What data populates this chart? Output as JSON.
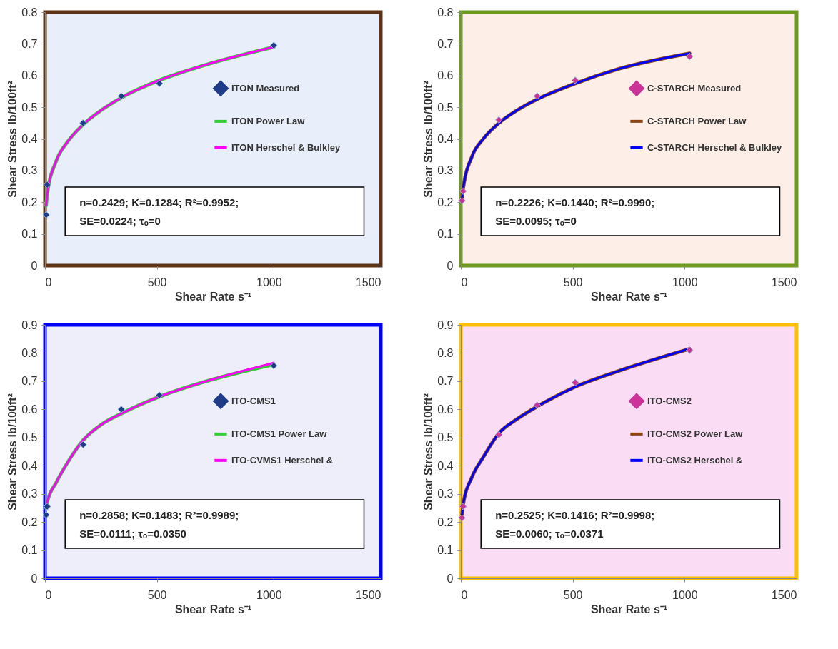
{
  "chart_data": [
    {
      "type": "line",
      "xlabel": "Shear Rate s⁻¹",
      "ylabel": "Shear Stress lb/100ft²",
      "xlim": [
        0,
        1500
      ],
      "xticks": [
        0,
        500,
        1000,
        1500
      ],
      "ylim": [
        0,
        0.8
      ],
      "yticks": [
        0,
        0.1,
        0.2,
        0.3,
        0.4,
        0.5,
        0.6,
        0.7,
        0.8
      ],
      "grid": false,
      "legend": "right",
      "line_style": "solid",
      "annotations": [
        "n=0.2429; K=0.1284; R²=0.9952;",
        "SE=0.0224; τₒ=0"
      ],
      "series": [
        {
          "name": "ITON Measured",
          "type": "scatter",
          "color": "#1f3c88",
          "x": [
            5,
            10,
            170,
            341,
            511,
            1022
          ],
          "values": [
            0.16,
            0.255,
            0.45,
            0.535,
            0.575,
            0.695
          ]
        },
        {
          "name": "ITON Power Law",
          "color": "#33cc33",
          "x": [
            5,
            10,
            50,
            100,
            170,
            250,
            341,
            511,
            700,
            1022
          ],
          "values": [
            0.19,
            0.225,
            0.33,
            0.39,
            0.445,
            0.49,
            0.53,
            0.585,
            0.63,
            0.69
          ]
        },
        {
          "name": "ITON Herschel & Bulkley",
          "color": "#ff00ff",
          "x": [
            5,
            10,
            50,
            100,
            170,
            250,
            341,
            511,
            700,
            1022
          ],
          "values": [
            0.19,
            0.225,
            0.33,
            0.39,
            0.445,
            0.49,
            0.53,
            0.585,
            0.63,
            0.69
          ]
        }
      ]
    },
    {
      "type": "line",
      "xlabel": "Shear Rate s⁻¹",
      "ylabel": "Shear Stress lb/100ft²",
      "xlim": [
        0,
        1500
      ],
      "xticks": [
        0,
        500,
        1000,
        1500
      ],
      "ylim": [
        0,
        0.8
      ],
      "yticks": [
        0,
        0.1,
        0.2,
        0.3,
        0.4,
        0.5,
        0.6,
        0.7,
        0.8
      ],
      "grid": false,
      "legend": "right",
      "line_style": "solid",
      "annotations": [
        "n=0.2226; K=0.1440; R²=0.9990;",
        "SE=0.0095; τₒ=0"
      ],
      "series": [
        {
          "name": "C-STARCH Measured",
          "type": "scatter",
          "color": "#cc3399",
          "x": [
            5,
            10,
            170,
            341,
            511,
            1022
          ],
          "values": [
            0.205,
            0.235,
            0.46,
            0.535,
            0.585,
            0.66
          ]
        },
        {
          "name": "C-STARCH Power Law",
          "color": "#8b4513",
          "x": [
            5,
            10,
            50,
            100,
            170,
            250,
            341,
            511,
            700,
            1022
          ],
          "values": [
            0.205,
            0.24,
            0.345,
            0.4,
            0.45,
            0.49,
            0.525,
            0.575,
            0.62,
            0.67
          ]
        },
        {
          "name": "C-STARCH Herschel & Bulkley",
          "color": "#0000ff",
          "x": [
            5,
            10,
            50,
            100,
            170,
            250,
            341,
            511,
            700,
            1022
          ],
          "values": [
            0.205,
            0.24,
            0.345,
            0.4,
            0.45,
            0.49,
            0.525,
            0.575,
            0.62,
            0.67
          ]
        }
      ]
    },
    {
      "type": "line",
      "xlabel": "Shear Rate s⁻¹",
      "ylabel": "Shear Stress lb/100ft²",
      "xlim": [
        0,
        1500
      ],
      "xticks": [
        0,
        500,
        1000,
        1500
      ],
      "ylim": [
        0,
        0.9
      ],
      "yticks": [
        0,
        0.1,
        0.2,
        0.3,
        0.4,
        0.5,
        0.6,
        0.7,
        0.8,
        0.9
      ],
      "grid": false,
      "legend": "right",
      "line_style": "solid",
      "annotations": [
        "n=0.2858; K=0.1483; R²=0.9989;",
        "SE=0.0111; τₒ=0.0350"
      ],
      "series": [
        {
          "name": "ITO-CMS1",
          "type": "scatter",
          "color": "#1f3c88",
          "x": [
            5,
            10,
            170,
            341,
            511,
            1022
          ],
          "values": [
            0.225,
            0.255,
            0.475,
            0.6,
            0.65,
            0.755
          ]
        },
        {
          "name": "ITO-CMS1 Power Law",
          "color": "#33cc33",
          "x": [
            5,
            10,
            50,
            100,
            170,
            250,
            341,
            511,
            700,
            1022
          ],
          "values": [
            0.25,
            0.27,
            0.34,
            0.41,
            0.49,
            0.545,
            0.585,
            0.645,
            0.695,
            0.76
          ]
        },
        {
          "name": "ITO-CVMS1 Herschel &",
          "color": "#ff00ff",
          "x": [
            5,
            10,
            50,
            100,
            170,
            250,
            341,
            511,
            700,
            1022
          ],
          "values": [
            0.25,
            0.27,
            0.34,
            0.41,
            0.49,
            0.545,
            0.585,
            0.645,
            0.695,
            0.765
          ]
        }
      ]
    },
    {
      "type": "line",
      "xlabel": "Shear Rate s⁻¹",
      "ylabel": "Shear Stress lb/100ft²",
      "xlim": [
        0,
        1500
      ],
      "xticks": [
        0,
        500,
        1000,
        1500
      ],
      "ylim": [
        0,
        0.9
      ],
      "yticks": [
        0,
        0.1,
        0.2,
        0.3,
        0.4,
        0.5,
        0.6,
        0.7,
        0.8,
        0.9
      ],
      "grid": false,
      "legend": "right",
      "line_style": "solid",
      "annotations": [
        "n=0.2525; K=0.1416; R²=0.9998;",
        "SE=0.0060; τₒ=0.0371"
      ],
      "series": [
        {
          "name": "ITO-CMS2",
          "type": "scatter",
          "color": "#cc3399",
          "x": [
            5,
            10,
            170,
            341,
            511,
            1022
          ],
          "values": [
            0.215,
            0.255,
            0.51,
            0.615,
            0.695,
            0.81
          ]
        },
        {
          "name": "ITO-CMS2 Power Law",
          "color": "#8b4513",
          "x": [
            5,
            10,
            50,
            100,
            170,
            250,
            341,
            511,
            700,
            1022
          ],
          "values": [
            0.22,
            0.26,
            0.36,
            0.43,
            0.515,
            0.565,
            0.61,
            0.68,
            0.735,
            0.815
          ]
        },
        {
          "name": "ITO-CMS2 Herschel &",
          "color": "#0000ff",
          "x": [
            5,
            10,
            50,
            100,
            170,
            250,
            341,
            511,
            700,
            1022
          ],
          "values": [
            0.22,
            0.26,
            0.36,
            0.43,
            0.515,
            0.565,
            0.61,
            0.68,
            0.735,
            0.815
          ]
        }
      ]
    }
  ]
}
